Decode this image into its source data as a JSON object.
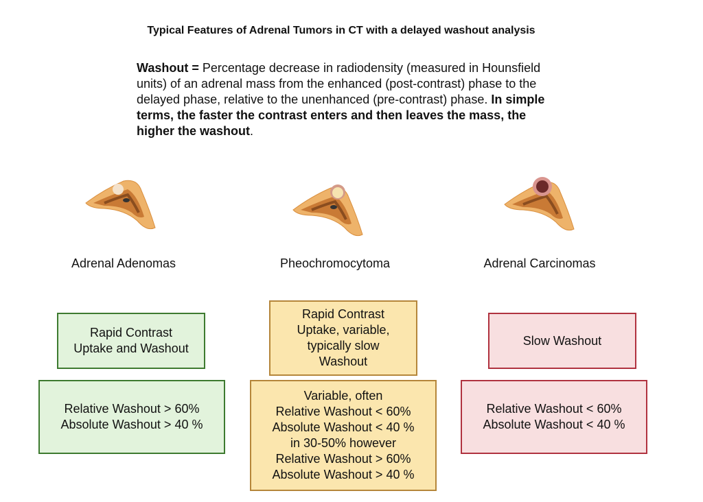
{
  "title": "Typical Features of Adrenal Tumors in CT with a delayed washout analysis",
  "definition": {
    "term": "Washout =",
    "text": " Percentage decrease in radiodensity (measured in Hounsfield units) of an adrenal mass from the enhanced (post-contrast) phase to the delayed phase, relative to the unenhanced (pre-contrast) phase. ",
    "bold_summary": "In simple terms,  the faster the contrast enters and then leaves the mass, the higher the washout",
    "end": "."
  },
  "columns": [
    {
      "label": "Adrenal Adenomas",
      "uptake": [
        "Rapid Contrast",
        "Uptake and Washout"
      ],
      "values": [
        "Relative Washout > 60%",
        "Absolute Washout > 40 %"
      ],
      "color": "#e2f3dc"
    },
    {
      "label": "Pheochromocytoma",
      "uptake": [
        "Rapid Contrast",
        "Uptake, variable,",
        "typically slow",
        "Washout"
      ],
      "values": [
        "Variable, often",
        "Relative Washout < 60%",
        "Absolute Washout < 40 %",
        "in 30-50% however",
        "Relative Washout > 60%",
        "Absolute Washout > 40 %"
      ],
      "color": "#fbe6ae"
    },
    {
      "label": "Adrenal Carcinomas",
      "uptake": [
        "Slow Washout"
      ],
      "values": [
        "Relative Washout < 60%",
        "Absolute Washout < 40 %"
      ],
      "color": "#f8dfe0"
    }
  ]
}
